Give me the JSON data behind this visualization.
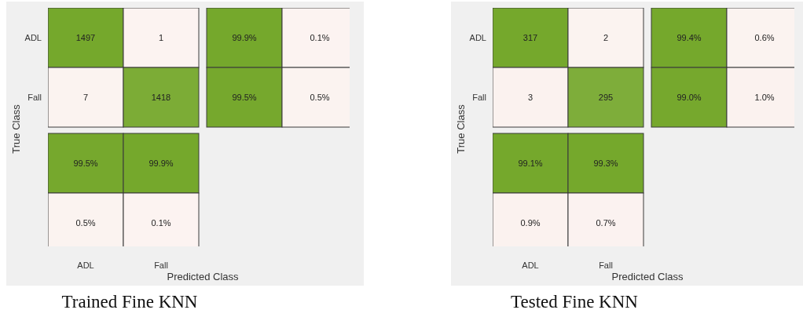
{
  "chart_data": [
    {
      "type": "heatmap",
      "title": "Trained Fine KNN",
      "xlabel": "Predicted Class",
      "ylabel": "True Class",
      "categories": [
        "ADL",
        "Fall",
        null,
        null
      ],
      "y_categories": [
        "ADL",
        "Fall",
        null,
        null
      ],
      "cells": [
        [
          1497,
          1,
          99.9,
          0.1
        ],
        [
          7,
          1418,
          99.5,
          0.5
        ],
        [
          99.5,
          99.9,
          null,
          null
        ],
        [
          0.5,
          0.1,
          null,
          null
        ]
      ],
      "cell_labels": [
        [
          "1497",
          "1",
          "99.9%",
          "0.1%"
        ],
        [
          "7",
          "1418",
          "99.5%",
          "0.5%"
        ],
        [
          "99.5%",
          "99.9%",
          null,
          null
        ],
        [
          "0.5%",
          "0.1%",
          null,
          null
        ]
      ]
    },
    {
      "type": "heatmap",
      "title": "Tested Fine KNN",
      "xlabel": "Predicted Class",
      "ylabel": "True Class",
      "categories": [
        "ADL",
        "Fall",
        null,
        null
      ],
      "y_categories": [
        "ADL",
        "Fall",
        null,
        null
      ],
      "cells": [
        [
          317,
          2,
          99.4,
          0.6
        ],
        [
          3,
          295,
          99.0,
          1.0
        ],
        [
          99.1,
          99.3,
          null,
          null
        ],
        [
          0.9,
          0.7,
          null,
          null
        ]
      ],
      "cell_labels": [
        [
          "317",
          "2",
          "99.4%",
          "0.6%"
        ],
        [
          "3",
          "295",
          "99.0%",
          "1.0%"
        ],
        [
          "99.1%",
          "99.3%",
          null,
          null
        ],
        [
          "0.9%",
          "0.7%",
          null,
          null
        ]
      ]
    }
  ]
}
